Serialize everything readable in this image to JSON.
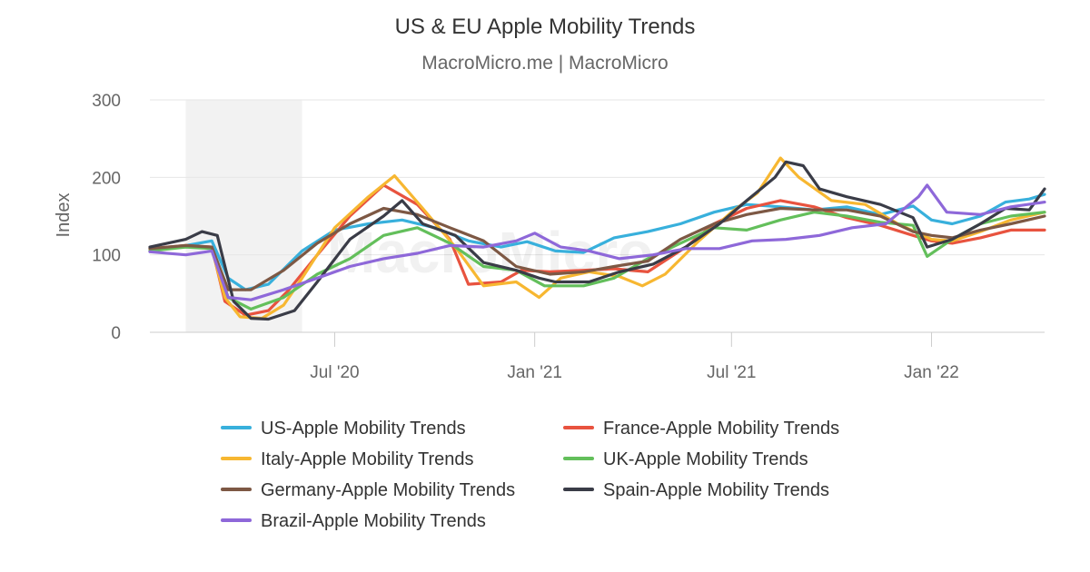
{
  "header": {
    "title": "US & EU Apple Mobility Trends",
    "subtitle": "MacroMicro.me | MacroMicro"
  },
  "watermark": "MacroMicro",
  "chart_data": {
    "type": "line",
    "title": "US & EU Apple Mobility Trends",
    "subtitle": "MacroMicro.me | MacroMicro",
    "xlabel": "",
    "ylabel": "Index",
    "x_range": [
      "2020-01-13",
      "2022-04-15"
    ],
    "ylim": [
      0,
      300
    ],
    "y_ticks": [
      0,
      100,
      200,
      300
    ],
    "x_ticks": [
      {
        "date": "2020-07-01",
        "label": "Jul '20"
      },
      {
        "date": "2021-01-01",
        "label": "Jan '21"
      },
      {
        "date": "2021-07-01",
        "label": "Jul '21"
      },
      {
        "date": "2022-01-01",
        "label": "Jan '22"
      }
    ],
    "grid": true,
    "shaded_band": {
      "from": "2020-02-15",
      "to": "2020-06-01",
      "color": "#f2f2f2"
    },
    "legend_position": "bottom",
    "series": [
      {
        "name": "US-Apple Mobility Trends",
        "color": "#38b0dc",
        "points": [
          [
            "2020-01-13",
            105
          ],
          [
            "2020-02-15",
            112
          ],
          [
            "2020-03-10",
            118
          ],
          [
            "2020-03-25",
            70
          ],
          [
            "2020-04-10",
            55
          ],
          [
            "2020-05-01",
            62
          ],
          [
            "2020-06-01",
            105
          ],
          [
            "2020-07-01",
            132
          ],
          [
            "2020-08-01",
            140
          ],
          [
            "2020-09-01",
            145
          ],
          [
            "2020-10-01",
            135
          ],
          [
            "2020-11-01",
            118
          ],
          [
            "2020-12-01",
            110
          ],
          [
            "2020-12-25",
            117
          ],
          [
            "2021-01-20",
            105
          ],
          [
            "2021-02-15",
            103
          ],
          [
            "2021-03-15",
            122
          ],
          [
            "2021-04-15",
            130
          ],
          [
            "2021-05-15",
            140
          ],
          [
            "2021-06-15",
            155
          ],
          [
            "2021-07-15",
            165
          ],
          [
            "2021-08-15",
            162
          ],
          [
            "2021-09-15",
            158
          ],
          [
            "2021-10-15",
            162
          ],
          [
            "2021-11-15",
            152
          ],
          [
            "2021-12-15",
            163
          ],
          [
            "2022-01-01",
            145
          ],
          [
            "2022-01-20",
            140
          ],
          [
            "2022-02-15",
            150
          ],
          [
            "2022-03-10",
            168
          ],
          [
            "2022-04-01",
            172
          ],
          [
            "2022-04-15",
            178
          ]
        ]
      },
      {
        "name": "France-Apple Mobility Trends",
        "color": "#e8533f",
        "points": [
          [
            "2020-01-13",
            108
          ],
          [
            "2020-02-15",
            112
          ],
          [
            "2020-03-10",
            110
          ],
          [
            "2020-03-22",
            40
          ],
          [
            "2020-04-10",
            22
          ],
          [
            "2020-05-01",
            28
          ],
          [
            "2020-05-20",
            55
          ],
          [
            "2020-06-15",
            100
          ],
          [
            "2020-07-15",
            150
          ],
          [
            "2020-08-15",
            190
          ],
          [
            "2020-09-15",
            165
          ],
          [
            "2020-10-15",
            120
          ],
          [
            "2020-11-01",
            62
          ],
          [
            "2020-12-01",
            65
          ],
          [
            "2020-12-20",
            80
          ],
          [
            "2021-01-15",
            78
          ],
          [
            "2021-02-15",
            80
          ],
          [
            "2021-03-15",
            82
          ],
          [
            "2021-04-15",
            78
          ],
          [
            "2021-05-20",
            110
          ],
          [
            "2021-06-15",
            140
          ],
          [
            "2021-07-15",
            160
          ],
          [
            "2021-08-15",
            170
          ],
          [
            "2021-09-15",
            162
          ],
          [
            "2021-10-15",
            148
          ],
          [
            "2021-11-15",
            138
          ],
          [
            "2021-12-15",
            125
          ],
          [
            "2022-01-01",
            118
          ],
          [
            "2022-01-20",
            115
          ],
          [
            "2022-02-15",
            122
          ],
          [
            "2022-03-15",
            132
          ],
          [
            "2022-04-15",
            132
          ]
        ]
      },
      {
        "name": "Italy-Apple Mobility Trends",
        "color": "#f7b731",
        "points": [
          [
            "2020-01-13",
            105
          ],
          [
            "2020-02-15",
            112
          ],
          [
            "2020-03-10",
            108
          ],
          [
            "2020-03-22",
            45
          ],
          [
            "2020-04-05",
            20
          ],
          [
            "2020-04-25",
            18
          ],
          [
            "2020-05-15",
            35
          ],
          [
            "2020-06-01",
            70
          ],
          [
            "2020-07-01",
            135
          ],
          [
            "2020-08-01",
            175
          ],
          [
            "2020-08-25",
            202
          ],
          [
            "2020-09-20",
            160
          ],
          [
            "2020-10-20",
            110
          ],
          [
            "2020-11-15",
            60
          ],
          [
            "2020-12-15",
            65
          ],
          [
            "2021-01-05",
            45
          ],
          [
            "2021-01-25",
            70
          ],
          [
            "2021-02-20",
            78
          ],
          [
            "2021-03-20",
            72
          ],
          [
            "2021-04-10",
            60
          ],
          [
            "2021-05-01",
            75
          ],
          [
            "2021-06-01",
            118
          ],
          [
            "2021-07-01",
            155
          ],
          [
            "2021-07-25",
            180
          ],
          [
            "2021-08-15",
            225
          ],
          [
            "2021-09-01",
            200
          ],
          [
            "2021-10-01",
            170
          ],
          [
            "2021-11-01",
            165
          ],
          [
            "2021-12-01",
            140
          ],
          [
            "2022-01-01",
            120
          ],
          [
            "2022-01-20",
            118
          ],
          [
            "2022-02-15",
            130
          ],
          [
            "2022-03-15",
            145
          ],
          [
            "2022-04-15",
            155
          ]
        ]
      },
      {
        "name": "UK-Apple Mobility Trends",
        "color": "#63bf5b",
        "points": [
          [
            "2020-01-13",
            105
          ],
          [
            "2020-02-15",
            110
          ],
          [
            "2020-03-10",
            108
          ],
          [
            "2020-03-25",
            45
          ],
          [
            "2020-04-15",
            30
          ],
          [
            "2020-05-15",
            45
          ],
          [
            "2020-06-15",
            75
          ],
          [
            "2020-07-15",
            95
          ],
          [
            "2020-08-15",
            125
          ],
          [
            "2020-09-15",
            135
          ],
          [
            "2020-10-15",
            115
          ],
          [
            "2020-11-15",
            85
          ],
          [
            "2020-12-15",
            80
          ],
          [
            "2021-01-10",
            60
          ],
          [
            "2021-02-15",
            60
          ],
          [
            "2021-03-15",
            70
          ],
          [
            "2021-04-15",
            95
          ],
          [
            "2021-05-15",
            115
          ],
          [
            "2021-06-15",
            135
          ],
          [
            "2021-07-15",
            132
          ],
          [
            "2021-08-15",
            145
          ],
          [
            "2021-09-15",
            155
          ],
          [
            "2021-10-15",
            150
          ],
          [
            "2021-11-15",
            142
          ],
          [
            "2021-12-15",
            138
          ],
          [
            "2021-12-28",
            98
          ],
          [
            "2022-01-20",
            120
          ],
          [
            "2022-02-15",
            140
          ],
          [
            "2022-03-15",
            150
          ],
          [
            "2022-04-15",
            155
          ]
        ]
      },
      {
        "name": "Germany-Apple Mobility Trends",
        "color": "#7d5844",
        "points": [
          [
            "2020-01-13",
            108
          ],
          [
            "2020-02-15",
            112
          ],
          [
            "2020-03-10",
            110
          ],
          [
            "2020-03-25",
            55
          ],
          [
            "2020-04-15",
            55
          ],
          [
            "2020-05-15",
            80
          ],
          [
            "2020-06-15",
            115
          ],
          [
            "2020-07-15",
            140
          ],
          [
            "2020-08-15",
            160
          ],
          [
            "2020-09-15",
            152
          ],
          [
            "2020-10-15",
            135
          ],
          [
            "2020-11-15",
            118
          ],
          [
            "2020-12-15",
            85
          ],
          [
            "2021-01-15",
            75
          ],
          [
            "2021-02-15",
            78
          ],
          [
            "2021-03-15",
            85
          ],
          [
            "2021-04-15",
            92
          ],
          [
            "2021-05-15",
            120
          ],
          [
            "2021-06-15",
            140
          ],
          [
            "2021-07-15",
            152
          ],
          [
            "2021-08-15",
            160
          ],
          [
            "2021-09-15",
            158
          ],
          [
            "2021-10-15",
            158
          ],
          [
            "2021-11-15",
            150
          ],
          [
            "2021-12-15",
            130
          ],
          [
            "2022-01-01",
            125
          ],
          [
            "2022-01-20",
            122
          ],
          [
            "2022-02-15",
            132
          ],
          [
            "2022-03-15",
            140
          ],
          [
            "2022-04-15",
            150
          ]
        ]
      },
      {
        "name": "Spain-Apple Mobility Trends",
        "color": "#3a3c47",
        "points": [
          [
            "2020-01-13",
            110
          ],
          [
            "2020-02-15",
            120
          ],
          [
            "2020-03-01",
            130
          ],
          [
            "2020-03-15",
            125
          ],
          [
            "2020-03-30",
            40
          ],
          [
            "2020-04-15",
            18
          ],
          [
            "2020-05-01",
            17
          ],
          [
            "2020-05-25",
            28
          ],
          [
            "2020-06-15",
            65
          ],
          [
            "2020-07-15",
            120
          ],
          [
            "2020-08-15",
            150
          ],
          [
            "2020-09-01",
            170
          ],
          [
            "2020-09-20",
            140
          ],
          [
            "2020-10-20",
            125
          ],
          [
            "2020-11-15",
            90
          ],
          [
            "2020-12-15",
            80
          ],
          [
            "2021-01-05",
            70
          ],
          [
            "2021-01-20",
            65
          ],
          [
            "2021-02-20",
            65
          ],
          [
            "2021-03-20",
            78
          ],
          [
            "2021-04-20",
            88
          ],
          [
            "2021-05-20",
            110
          ],
          [
            "2021-06-20",
            140
          ],
          [
            "2021-07-15",
            170
          ],
          [
            "2021-08-10",
            200
          ],
          [
            "2021-08-20",
            220
          ],
          [
            "2021-09-05",
            215
          ],
          [
            "2021-09-20",
            185
          ],
          [
            "2021-10-15",
            175
          ],
          [
            "2021-11-15",
            165
          ],
          [
            "2021-12-15",
            148
          ],
          [
            "2021-12-28",
            110
          ],
          [
            "2022-01-20",
            120
          ],
          [
            "2022-02-15",
            140
          ],
          [
            "2022-03-10",
            160
          ],
          [
            "2022-04-01",
            158
          ],
          [
            "2022-04-15",
            185
          ]
        ]
      },
      {
        "name": "Brazil-Apple Mobility Trends",
        "color": "#8e68d9",
        "points": [
          [
            "2020-01-13",
            104
          ],
          [
            "2020-02-15",
            100
          ],
          [
            "2020-03-10",
            105
          ],
          [
            "2020-03-25",
            45
          ],
          [
            "2020-04-15",
            42
          ],
          [
            "2020-05-15",
            55
          ],
          [
            "2020-06-15",
            70
          ],
          [
            "2020-07-15",
            85
          ],
          [
            "2020-08-15",
            95
          ],
          [
            "2020-09-15",
            102
          ],
          [
            "2020-10-15",
            112
          ],
          [
            "2020-11-15",
            110
          ],
          [
            "2020-12-15",
            118
          ],
          [
            "2021-01-01",
            128
          ],
          [
            "2021-01-25",
            110
          ],
          [
            "2021-02-20",
            105
          ],
          [
            "2021-03-20",
            95
          ],
          [
            "2021-04-20",
            100
          ],
          [
            "2021-05-20",
            108
          ],
          [
            "2021-06-20",
            108
          ],
          [
            "2021-07-20",
            118
          ],
          [
            "2021-08-20",
            120
          ],
          [
            "2021-09-20",
            125
          ],
          [
            "2021-10-20",
            135
          ],
          [
            "2021-11-20",
            140
          ],
          [
            "2021-12-20",
            175
          ],
          [
            "2021-12-28",
            190
          ],
          [
            "2022-01-15",
            155
          ],
          [
            "2022-02-15",
            152
          ],
          [
            "2022-03-15",
            162
          ],
          [
            "2022-04-15",
            168
          ]
        ]
      }
    ]
  }
}
